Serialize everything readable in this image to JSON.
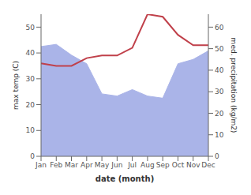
{
  "chart_data": {
    "type": "line",
    "categories": [
      "Jan",
      "Feb",
      "Mar",
      "Apr",
      "May",
      "Jun",
      "Jul",
      "Aug",
      "Sep",
      "Oct",
      "Nov",
      "Dec"
    ],
    "xlabel": "date (month)",
    "ylabel": "max temp (C)",
    "y2label": "med. precipitation (kg/m2)",
    "series": [
      {
        "type": "area",
        "color": "#aab4e8",
        "axis": "y2",
        "values": [
          51,
          52,
          47,
          43,
          29,
          28,
          31,
          28,
          27,
          43,
          45,
          49
        ]
      },
      {
        "type": "line",
        "color": "#c0404a",
        "values": [
          36,
          35,
          35,
          38,
          39,
          39,
          42,
          55,
          54,
          47,
          43,
          43
        ]
      }
    ],
    "ylim": [
      0,
      55
    ],
    "yticks": [
      0,
      10,
      20,
      30,
      40,
      50
    ],
    "y2lim": [
      0,
      66
    ],
    "y2ticks": [
      0,
      10,
      20,
      30,
      40,
      50,
      60
    ],
    "grid": false
  }
}
